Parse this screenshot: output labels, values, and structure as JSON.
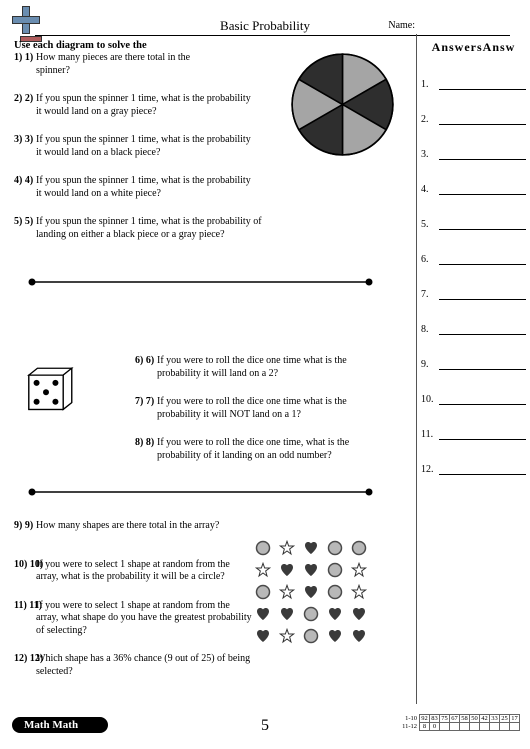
{
  "header": {
    "title": "Basic Probability",
    "name_label": "Name:"
  },
  "instruction": "Use each diagram to solve the",
  "answers_title": "AnswersAnsw",
  "footer": {
    "brand": "Math Math",
    "page_number": "5",
    "scores": {
      "row1_label": "1-10",
      "row1_values": [
        "92",
        "83",
        "75",
        "67",
        "58",
        "50",
        "42",
        "33",
        "25",
        "17"
      ],
      "row2_label": "11-12",
      "row2_values": [
        "8",
        "0"
      ]
    }
  },
  "questions": {
    "q1": {
      "num": "1) 1)",
      "text": "How many pieces are there total in the spinner?"
    },
    "q2": {
      "num": "2) 2)",
      "text": "If you spun the spinner 1 time, what is the probability it would land on a gray piece?"
    },
    "q3": {
      "num": "3) 3)",
      "text": "If you spun the spinner 1 time, what is the probability it would land on a black piece?"
    },
    "q4": {
      "num": "4) 4)",
      "text": "If you spun the spinner 1 time, what is the probability it would land on a white piece?"
    },
    "q5": {
      "num": "5) 5)",
      "text": "If you spun the spinner 1 time, what is the probability of landing on either a black piece or a gray piece?"
    },
    "q6": {
      "num": "6) 6)",
      "text": "If you were to roll the dice one time what is the probability it will land on a 2?"
    },
    "q7": {
      "num": "7) 7)",
      "text": "If you were to roll the dice one time what is the probability it will NOT land on a 1?"
    },
    "q8": {
      "num": "8) 8)",
      "text": "If you were to roll the dice one time, what is the probability of it landing on an odd number?"
    },
    "q9": {
      "num": "9) 9)",
      "text": "How many shapes are there total in the array?"
    },
    "q10": {
      "num": "10) 10)",
      "text": "If you were to select 1 shape at random from the array, what is the probability it will be a circle?"
    },
    "q11": {
      "num": "11) 11)",
      "text": "If you were to select 1 shape at random from the array, what shape do you have the greatest probability of selecting?"
    },
    "q12": {
      "num": "12) 12)",
      "text": "Which shape has a 36% chance (9 out of 25) of being selected?"
    }
  },
  "spinner": {
    "slices": 6,
    "colors": [
      "#a5a5a5",
      "#2e2e2e",
      "#a5a5a5",
      "#2e2e2e",
      "#a5a5a5",
      "#2e2e2e"
    ],
    "stroke": "#000000"
  },
  "dice": {
    "face_value": 5,
    "body_fill": "#ffffff",
    "stroke": "#000000",
    "pip_fill": "#000000"
  },
  "shapes_array": {
    "rows": 5,
    "cols": 5,
    "grid": [
      [
        "circle",
        "star",
        "heart",
        "circle",
        "circle"
      ],
      [
        "star",
        "heart",
        "heart",
        "circle",
        "star"
      ],
      [
        "circle",
        "star",
        "heart",
        "circle",
        "star"
      ],
      [
        "heart",
        "heart",
        "circle",
        "heart",
        "heart"
      ],
      [
        "heart",
        "star",
        "circle",
        "heart",
        "heart"
      ]
    ],
    "colors": {
      "circle_fill": "#b8b8b8",
      "circle_stroke": "#4a4a4a",
      "star_stroke": "#333333",
      "star_fill": "#ffffff",
      "heart_fill": "#3a3a3a"
    }
  },
  "answer_lines": 12,
  "colors": {
    "page_bg": "#ffffff",
    "divider": "#000000"
  }
}
